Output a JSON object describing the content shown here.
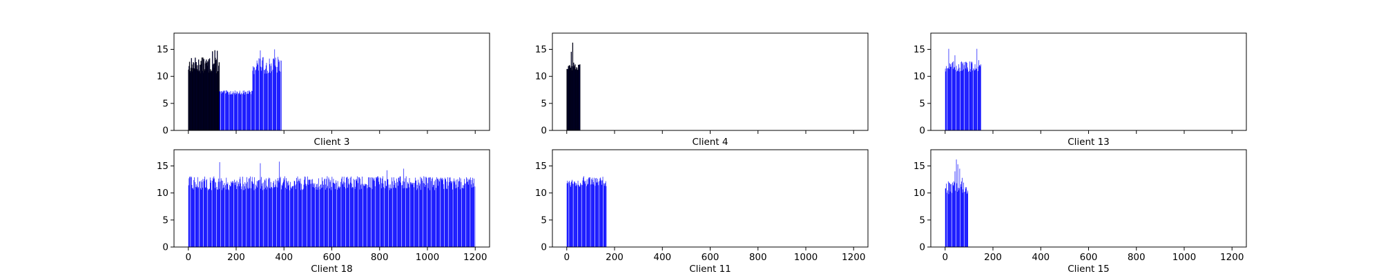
{
  "colors": {
    "bar": "#0000ff",
    "bar_edge": "#000000",
    "axes": "#000000",
    "background": "#ffffff"
  },
  "chart_data": [
    {
      "type": "bar",
      "title": "Client 3",
      "xlabel": "Client 3",
      "ylabel": "",
      "xlim": [
        -60,
        1260
      ],
      "ylim": [
        0,
        18
      ],
      "xticks": [
        0,
        200,
        400,
        600,
        800,
        1000,
        1200
      ],
      "xtick_labels_visible": false,
      "yticks": [
        0,
        5,
        10,
        15
      ],
      "ytick_labels": [
        "0",
        "5",
        "10",
        "15"
      ],
      "segments": [
        {
          "x_start": 0,
          "x_end": 130,
          "mean": 12,
          "spread": 1.5,
          "dark": true
        },
        {
          "x_start": 130,
          "x_end": 268,
          "mean": 7,
          "spread": 0.4,
          "dark": false
        },
        {
          "x_start": 268,
          "x_end": 390,
          "mean": 12,
          "spread": 1.6,
          "dark": false
        }
      ],
      "peaks": [
        [
          100,
          14.6
        ],
        [
          110,
          14.8
        ],
        [
          120,
          14.7
        ],
        [
          300,
          14.8
        ],
        [
          360,
          15.0
        ],
        [
          374,
          13.6
        ]
      ]
    },
    {
      "type": "bar",
      "title": "Client 4",
      "xlabel": "Client 4",
      "ylabel": "",
      "xlim": [
        -60,
        1260
      ],
      "ylim": [
        0,
        18
      ],
      "xticks": [
        0,
        200,
        400,
        600,
        800,
        1000,
        1200
      ],
      "xtick_labels_visible": false,
      "yticks": [
        0,
        5,
        10,
        15
      ],
      "ytick_labels": [
        "0",
        "5",
        "10",
        "15"
      ],
      "segments": [
        {
          "x_start": 0,
          "x_end": 55,
          "mean": 11.6,
          "spread": 0.6,
          "dark": true
        }
      ],
      "peaks": [
        [
          18,
          14.5
        ],
        [
          24,
          16.2
        ],
        [
          28,
          12.5
        ]
      ]
    },
    {
      "type": "bar",
      "title": "Client 13",
      "xlabel": "Client 13",
      "ylabel": "",
      "xlim": [
        -60,
        1260
      ],
      "ylim": [
        0,
        18
      ],
      "xticks": [
        0,
        200,
        400,
        600,
        800,
        1000,
        1200
      ],
      "xtick_labels_visible": false,
      "yticks": [
        0,
        5,
        10,
        15
      ],
      "ytick_labels": [
        "0",
        "5",
        "10",
        "15"
      ],
      "segments": [
        {
          "x_start": 0,
          "x_end": 150,
          "mean": 11.8,
          "spread": 1.0,
          "dark": false
        }
      ],
      "peaks": [
        [
          14,
          15.1
        ],
        [
          40,
          13.9
        ],
        [
          132,
          15.1
        ],
        [
          140,
          13.0
        ]
      ]
    },
    {
      "type": "bar",
      "title": "Client 18",
      "xlabel": "Client 18",
      "ylabel": "",
      "xlim": [
        -60,
        1260
      ],
      "ylim": [
        0,
        18
      ],
      "xticks": [
        0,
        200,
        400,
        600,
        800,
        1000,
        1200
      ],
      "xtick_labels": [
        "0",
        "200",
        "400",
        "600",
        "800",
        "1000",
        "1200"
      ],
      "yticks": [
        0,
        5,
        10,
        15
      ],
      "ytick_labels": [
        "0",
        "5",
        "10",
        "15"
      ],
      "segments": [
        {
          "x_start": 0,
          "x_end": 1200,
          "mean": 11.8,
          "spread": 1.3,
          "dark": false
        }
      ],
      "peaks": [
        [
          130,
          15.7
        ],
        [
          300,
          15.5
        ],
        [
          380,
          15.8
        ],
        [
          900,
          14.5
        ],
        [
          830,
          14.2
        ],
        [
          105,
          14.6
        ],
        [
          245,
          13.9
        ]
      ]
    },
    {
      "type": "bar",
      "title": "Client 11",
      "xlabel": "Client 11",
      "ylabel": "",
      "xlim": [
        -60,
        1260
      ],
      "ylim": [
        0,
        18
      ],
      "xticks": [
        0,
        200,
        400,
        600,
        800,
        1000,
        1200
      ],
      "xtick_labels": [
        "0",
        "200",
        "400",
        "600",
        "800",
        "1000",
        "1200"
      ],
      "yticks": [
        0,
        5,
        10,
        15
      ],
      "ytick_labels": [
        "0",
        "5",
        "10",
        "15"
      ],
      "segments": [
        {
          "x_start": 0,
          "x_end": 165,
          "mean": 12.0,
          "spread": 0.9,
          "dark": false
        }
      ],
      "peaks": [
        [
          70,
          13.1
        ],
        [
          150,
          13.0
        ]
      ]
    },
    {
      "type": "bar",
      "title": "Client 15",
      "xlabel": "Client 15",
      "ylabel": "",
      "xlim": [
        -60,
        1260
      ],
      "ylim": [
        0,
        18
      ],
      "xticks": [
        0,
        200,
        400,
        600,
        800,
        1000,
        1200
      ],
      "xtick_labels": [
        "0",
        "200",
        "400",
        "600",
        "800",
        "1000",
        "1200"
      ],
      "yticks": [
        0,
        5,
        10,
        15
      ],
      "ytick_labels": [
        "0",
        "5",
        "10",
        "15"
      ],
      "segments": [
        {
          "x_start": 0,
          "x_end": 95,
          "mean": 11.0,
          "spread": 1.2,
          "dark": false
        }
      ],
      "peaks": [
        [
          40,
          14.0
        ],
        [
          46,
          16.2
        ],
        [
          52,
          15.3
        ],
        [
          60,
          14.5
        ],
        [
          70,
          12.8
        ]
      ]
    }
  ]
}
